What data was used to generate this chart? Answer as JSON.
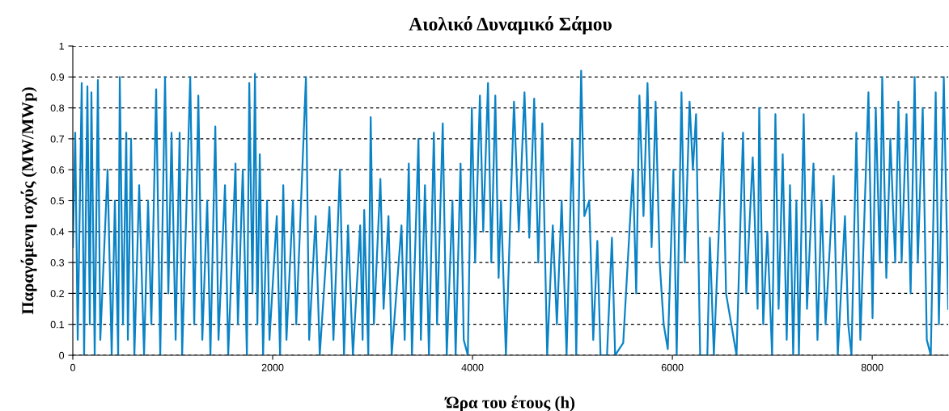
{
  "chart_data": {
    "type": "line",
    "title": "Αιολικό Δυναμικό Σάμου",
    "xlabel": "Ώρα του έτους (h)",
    "ylabel": "Παραγόμενη ισχύς (MW/MWp)",
    "x": [
      0,
      24,
      49,
      89,
      113,
      146,
      170,
      186,
      219,
      251,
      275,
      348,
      389,
      421,
      454,
      470,
      502,
      535,
      551,
      583,
      616,
      664,
      713,
      753,
      786,
      834,
      875,
      923,
      956,
      988,
      1029,
      1069,
      1094,
      1175,
      1215,
      1256,
      1296,
      1345,
      1377,
      1426,
      1458,
      1523,
      1555,
      1628,
      1652,
      1701,
      1742,
      1766,
      1798,
      1823,
      1847,
      1871,
      1904,
      1944,
      1968,
      2041,
      2074,
      2106,
      2138,
      2203,
      2236,
      2333,
      2365,
      2430,
      2471,
      2568,
      2608,
      2673,
      2714,
      2754,
      2803,
      2876,
      2900,
      2916,
      2957,
      2981,
      3013,
      3078,
      3110,
      3159,
      3191,
      3289,
      3321,
      3362,
      3394,
      3459,
      3483,
      3524,
      3564,
      3613,
      3645,
      3702,
      3742,
      3799,
      3831,
      3880,
      3912,
      3953,
      3993,
      4026,
      4074,
      4107,
      4155,
      4188,
      4228,
      4261,
      4285,
      4334,
      4415,
      4463,
      4520,
      4568,
      4617,
      4658,
      4698,
      4747,
      4803,
      4844,
      4892,
      4941,
      4998,
      5038,
      5087,
      5119,
      5168,
      5208,
      5249,
      5281,
      5346,
      5395,
      5427,
      5508,
      5605,
      5638,
      5670,
      5711,
      5751,
      5792,
      5832,
      5873,
      5913,
      5954,
      6010,
      6043,
      6091,
      6124,
      6172,
      6205,
      6237,
      6278,
      6350,
      6375,
      6415,
      6504,
      6537,
      6642,
      6707,
      6739,
      6804,
      6853,
      6869,
      6909,
      6950,
      6998,
      7031,
      7063,
      7104,
      7144,
      7177,
      7209,
      7241,
      7266,
      7314,
      7347,
      7412,
      7452,
      7493,
      7533,
      7614,
      7655,
      7727,
      7760,
      7792,
      7841,
      7881,
      7962,
      8003,
      8035,
      8076,
      8100,
      8141,
      8181,
      8230,
      8262,
      8294,
      8343,
      8384,
      8424,
      8456,
      8505,
      8546,
      8586,
      8635,
      8667,
      8716,
      8740,
      8760
    ],
    "series": [
      {
        "color": "#0a83c6",
        "values": [
          0.35,
          0.72,
          0.05,
          0.88,
          0.0,
          0.87,
          0.1,
          0.85,
          0.0,
          0.89,
          0.05,
          0.6,
          0.0,
          0.5,
          0.0,
          0.9,
          0.1,
          0.72,
          0.05,
          0.7,
          0.0,
          0.55,
          0.0,
          0.5,
          0.1,
          0.86,
          0.0,
          0.9,
          0.2,
          0.72,
          0.05,
          0.72,
          0.0,
          0.9,
          0.1,
          0.84,
          0.05,
          0.5,
          0.0,
          0.74,
          0.05,
          0.55,
          0.0,
          0.62,
          0.1,
          0.6,
          0.0,
          0.88,
          0.2,
          0.91,
          0.1,
          0.65,
          0.0,
          0.5,
          0.05,
          0.45,
          0.0,
          0.55,
          0.05,
          0.5,
          0.1,
          0.9,
          0.05,
          0.45,
          0.0,
          0.48,
          0.05,
          0.6,
          0.0,
          0.42,
          0.0,
          0.42,
          0.05,
          0.47,
          0.0,
          0.77,
          0.1,
          0.57,
          0.15,
          0.45,
          0.0,
          0.42,
          0.05,
          0.62,
          0.0,
          0.7,
          0.05,
          0.55,
          0.0,
          0.72,
          0.1,
          0.75,
          0.0,
          0.5,
          0.0,
          0.62,
          0.05,
          0.0,
          0.8,
          0.3,
          0.84,
          0.4,
          0.88,
          0.3,
          0.84,
          0.25,
          0.5,
          0.0,
          0.82,
          0.4,
          0.85,
          0.38,
          0.83,
          0.3,
          0.75,
          0.0,
          0.42,
          0.1,
          0.5,
          0.0,
          0.7,
          0.0,
          0.92,
          0.45,
          0.5,
          0.05,
          0.37,
          0.0,
          0.0,
          0.38,
          0.0,
          0.04,
          0.6,
          0.2,
          0.84,
          0.45,
          0.88,
          0.35,
          0.82,
          0.3,
          0.1,
          0.02,
          0.6,
          0.0,
          0.85,
          0.3,
          0.82,
          0.6,
          0.78,
          0.0,
          0.0,
          0.38,
          0.0,
          0.72,
          0.2,
          0.0,
          0.72,
          0.2,
          0.64,
          0.15,
          0.8,
          0.1,
          0.4,
          0.0,
          0.78,
          0.15,
          0.65,
          0.05,
          0.55,
          0.0,
          0.5,
          0.0,
          0.78,
          0.15,
          0.62,
          0.05,
          0.5,
          0.1,
          0.58,
          0.0,
          0.45,
          0.1,
          0.0,
          0.72,
          0.05,
          0.85,
          0.12,
          0.8,
          0.3,
          0.9,
          0.25,
          0.7,
          0.3,
          0.82,
          0.3,
          0.78,
          0.2,
          0.9,
          0.3,
          0.8,
          0.05,
          0.0,
          0.85,
          0.1,
          0.9,
          0.5,
          0.15
        ]
      }
    ],
    "xlim": [
      0,
      8760
    ],
    "ylim": [
      0,
      1
    ],
    "xticks": [
      0,
      2000,
      4000,
      6000,
      8000
    ],
    "yticks": [
      0,
      0.1,
      0.2,
      0.3,
      0.4,
      0.5,
      0.6,
      0.7,
      0.8,
      0.9,
      1
    ],
    "grid": "y",
    "line_style": "solid",
    "marker": "none"
  }
}
